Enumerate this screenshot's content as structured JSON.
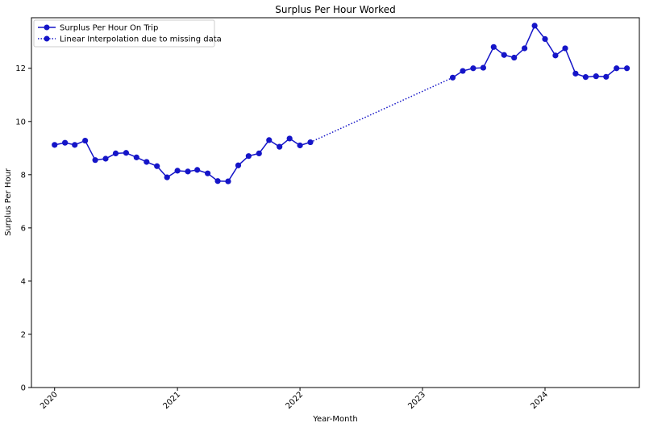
{
  "chart_data": {
    "type": "line",
    "title": "Surplus Per Hour Worked",
    "xlabel": "Year-Month",
    "ylabel": "Surplus Per Hour",
    "ylim": [
      0,
      13.9
    ],
    "xlim": [
      "2019-10-24",
      "2024-10-08"
    ],
    "yticks": [
      0,
      2,
      4,
      6,
      8,
      10,
      12
    ],
    "xticks": [
      {
        "x": "2020-01-01",
        "label": "2020"
      },
      {
        "x": "2021-01-01",
        "label": "2021"
      },
      {
        "x": "2022-01-01",
        "label": "2022"
      },
      {
        "x": "2023-01-01",
        "label": "2023"
      },
      {
        "x": "2024-01-01",
        "label": "2024"
      }
    ],
    "legend_position": "top-left",
    "grid": false,
    "series": [
      {
        "name": "Surplus Per Hour On Trip",
        "style": "solid",
        "color": "#1515c8",
        "segments": [
          [
            {
              "x": "2020-01-01",
              "y": 9.12
            },
            {
              "x": "2020-02-01",
              "y": 9.2
            },
            {
              "x": "2020-03-01",
              "y": 9.12
            },
            {
              "x": "2020-04-01",
              "y": 9.28
            },
            {
              "x": "2020-05-01",
              "y": 8.55
            },
            {
              "x": "2020-06-01",
              "y": 8.6
            },
            {
              "x": "2020-07-01",
              "y": 8.8
            },
            {
              "x": "2020-08-01",
              "y": 8.82
            },
            {
              "x": "2020-09-01",
              "y": 8.65
            },
            {
              "x": "2020-10-01",
              "y": 8.48
            },
            {
              "x": "2020-11-01",
              "y": 8.32
            },
            {
              "x": "2020-12-01",
              "y": 7.9
            },
            {
              "x": "2021-01-01",
              "y": 8.15
            },
            {
              "x": "2021-02-01",
              "y": 8.12
            },
            {
              "x": "2021-03-01",
              "y": 8.18
            },
            {
              "x": "2021-04-01",
              "y": 8.05
            },
            {
              "x": "2021-05-01",
              "y": 7.76
            },
            {
              "x": "2021-06-01",
              "y": 7.75
            },
            {
              "x": "2021-07-01",
              "y": 8.35
            },
            {
              "x": "2021-08-01",
              "y": 8.7
            },
            {
              "x": "2021-09-01",
              "y": 8.8
            },
            {
              "x": "2021-10-01",
              "y": 9.3
            },
            {
              "x": "2021-11-01",
              "y": 9.05
            },
            {
              "x": "2021-12-01",
              "y": 9.36
            },
            {
              "x": "2022-01-01",
              "y": 9.1
            },
            {
              "x": "2022-02-01",
              "y": 9.22
            }
          ],
          [
            {
              "x": "2023-04-01",
              "y": 11.65
            },
            {
              "x": "2023-05-01",
              "y": 11.9
            },
            {
              "x": "2023-06-01",
              "y": 12.0
            },
            {
              "x": "2023-07-01",
              "y": 12.02
            },
            {
              "x": "2023-08-01",
              "y": 12.8
            },
            {
              "x": "2023-09-01",
              "y": 12.5
            },
            {
              "x": "2023-10-01",
              "y": 12.4
            },
            {
              "x": "2023-11-01",
              "y": 12.75
            },
            {
              "x": "2023-12-01",
              "y": 13.6
            },
            {
              "x": "2024-01-01",
              "y": 13.1
            },
            {
              "x": "2024-02-01",
              "y": 12.48
            },
            {
              "x": "2024-03-01",
              "y": 12.75
            },
            {
              "x": "2024-04-01",
              "y": 11.8
            },
            {
              "x": "2024-05-01",
              "y": 11.67
            },
            {
              "x": "2024-06-01",
              "y": 11.7
            },
            {
              "x": "2024-07-01",
              "y": 11.68
            },
            {
              "x": "2024-08-01",
              "y": 12.0
            },
            {
              "x": "2024-09-01",
              "y": 12.0
            }
          ]
        ]
      },
      {
        "name": "Linear Interpolation due to missing data",
        "style": "dotted",
        "color": "#1515c8",
        "segments": [
          [
            {
              "x": "2022-02-01",
              "y": 9.22
            },
            {
              "x": "2023-04-01",
              "y": 11.65
            }
          ]
        ]
      }
    ]
  }
}
